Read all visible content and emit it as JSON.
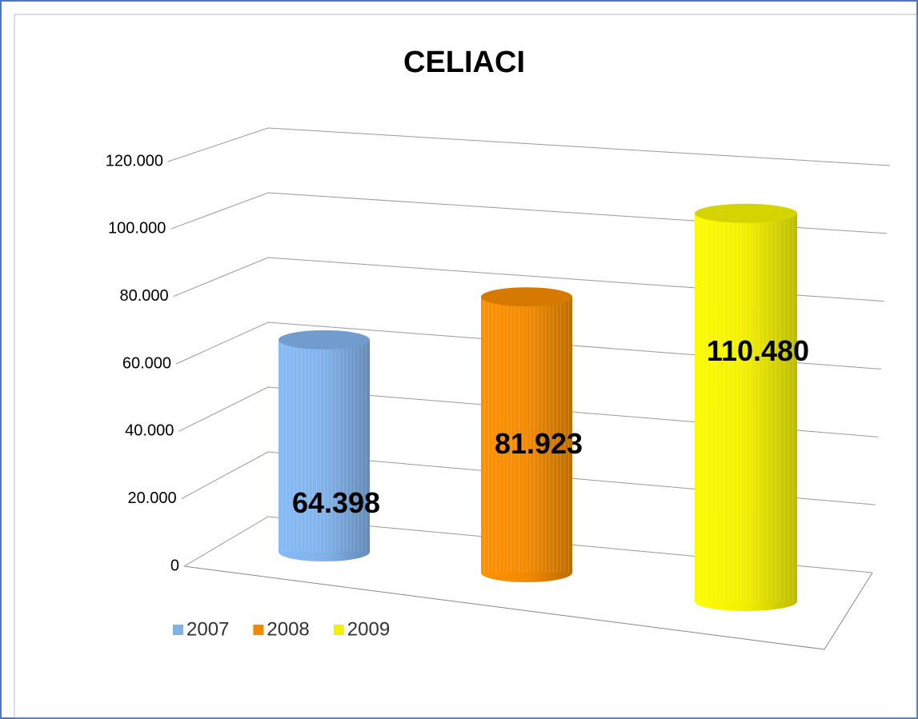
{
  "chart_data": {
    "type": "bar3d",
    "title": "CELIACI",
    "series": [
      {
        "name": "2007",
        "color": "#80b2ea",
        "values": [
          64398
        ],
        "value_labels": [
          "64.398"
        ]
      },
      {
        "name": "2008",
        "color": "#f28a00",
        "values": [
          81923
        ],
        "value_labels": [
          "81.923"
        ]
      },
      {
        "name": "2009",
        "color": "#f2f000",
        "values": [
          110480
        ],
        "value_labels": [
          "110.480"
        ]
      }
    ],
    "ylim": [
      0,
      120000
    ],
    "yticks": [
      0,
      {
        "value": 20000,
        "label": "20.000"
      },
      {
        "value": 40000,
        "label": "40.000"
      },
      {
        "value": 60000,
        "label": "60.000"
      },
      {
        "value": 80000,
        "label": "80.000"
      },
      {
        "value": 100000,
        "label": "100.000"
      },
      {
        "value": 120000,
        "label": "120.000"
      }
    ],
    "grid": true,
    "legend": "bottom-left"
  }
}
